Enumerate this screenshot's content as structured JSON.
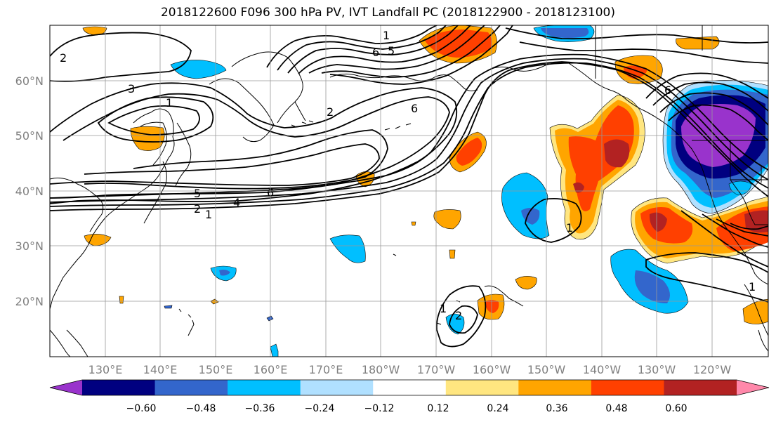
{
  "title": "2018122600 F096 300 hPa PV, IVT Landfall PC (2018122900 - 2018123100)",
  "lat_labels": [
    "60°N",
    "50°N",
    "40°N",
    "30°N",
    "20°N"
  ],
  "lon_labels": [
    "130°E",
    "140°E",
    "150°E",
    "160°E",
    "170°E",
    "180°W",
    "170°W",
    "160°W",
    "150°W",
    "140°W",
    "130°W",
    "120°W"
  ],
  "colorbar": {
    "colors": [
      "#9933cc",
      "#000080",
      "#3366cc",
      "#00bfff",
      "#b0e0ff",
      "#ffffff",
      "#ffe680",
      "#ffa500",
      "#ff4000",
      "#b22222",
      "#ff88aa"
    ],
    "labels": [
      "−0.60",
      "−0.48",
      "−0.36",
      "−0.24",
      "−0.12",
      "0.12",
      "0.24",
      "0.36",
      "0.48",
      "0.60"
    ]
  },
  "contour_labels": [
    "2",
    "3",
    "1",
    "5",
    "6",
    "2",
    "6",
    "5",
    "2",
    "4",
    "6",
    "1",
    "1",
    "1",
    "2",
    "1",
    "6",
    "1"
  ]
}
